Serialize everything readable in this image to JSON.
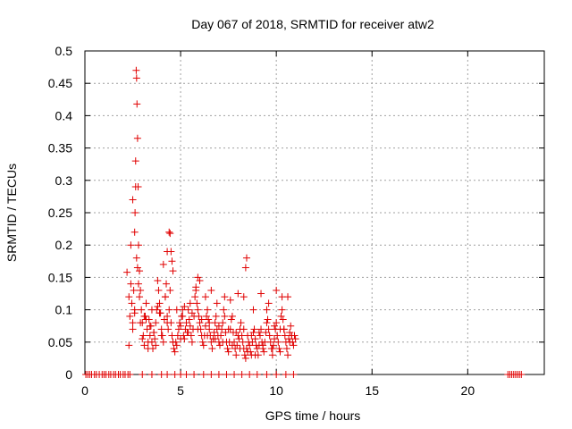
{
  "chart_data": {
    "type": "scatter",
    "title": "Day 067 of 2018, SRMTID for receiver atw2",
    "xlabel": "GPS time / hours",
    "ylabel": "SRMTID / TECUs",
    "xlim": [
      0,
      24
    ],
    "ylim": [
      0,
      0.5
    ],
    "grid": true,
    "marker": "+",
    "color": "#e00000",
    "x_ticks": [
      0,
      5,
      10,
      15,
      20
    ],
    "x_tick_labels": [
      "0",
      "5",
      "10",
      "15",
      "20"
    ],
    "y_ticks": [
      0,
      0.05,
      0.1,
      0.15,
      0.2,
      0.25,
      0.3,
      0.35,
      0.4,
      0.45,
      0.5
    ],
    "y_tick_labels": [
      "0",
      "0.05",
      "0.1",
      "0.15",
      "0.2",
      "0.25",
      "0.3",
      "0.35",
      "0.4",
      "0.45",
      "0.5"
    ],
    "series": [
      {
        "x": [
          0.05,
          0.15,
          0.25,
          0.35,
          0.5,
          0.6,
          0.75,
          0.9,
          1.0,
          1.1,
          1.25,
          1.35,
          1.5,
          1.6,
          1.75,
          1.85,
          2.0,
          2.1,
          2.25,
          2.35,
          3.0,
          3.5,
          4.0,
          4.3,
          4.7,
          5.0,
          5.3,
          5.7,
          6.2,
          6.6,
          7.0,
          7.4,
          7.8,
          8.2,
          8.6,
          9.0,
          9.5,
          10.0,
          10.5,
          10.9,
          22.1,
          22.2,
          22.3,
          22.4,
          22.5,
          22.6,
          22.7,
          22.8,
          2.2,
          2.3,
          2.35,
          2.4,
          2.45,
          2.5,
          2.55,
          2.6,
          2.62,
          2.65,
          2.68,
          2.7,
          2.72,
          2.75,
          2.78,
          2.8,
          2.85,
          2.9,
          2.95,
          3.0,
          3.05,
          3.1,
          3.15,
          3.2,
          3.25,
          3.3,
          3.35,
          3.4,
          3.45,
          3.5,
          3.55,
          3.6,
          3.65,
          3.7,
          3.75,
          3.8,
          3.85,
          3.9,
          3.95,
          4.0,
          4.05,
          4.1,
          4.15,
          4.2,
          4.25,
          4.3,
          4.35,
          4.4,
          4.45,
          4.5,
          4.55,
          4.6,
          4.65,
          4.7,
          4.75,
          4.8,
          4.85,
          4.9,
          4.95,
          5.0,
          5.05,
          5.1,
          5.15,
          5.2,
          5.25,
          5.3,
          5.35,
          5.4,
          5.45,
          5.5,
          5.55,
          5.6,
          5.65,
          5.7,
          5.75,
          5.8,
          5.85,
          5.9,
          5.95,
          6.0,
          6.05,
          6.1,
          6.15,
          6.2,
          6.25,
          6.3,
          6.35,
          6.4,
          6.45,
          6.5,
          6.55,
          6.6,
          6.65,
          6.7,
          6.75,
          6.8,
          6.85,
          6.9,
          6.95,
          7.0,
          7.05,
          7.1,
          7.15,
          7.2,
          7.25,
          7.3,
          7.35,
          7.4,
          7.45,
          7.5,
          7.55,
          7.6,
          7.65,
          7.7,
          7.75,
          7.8,
          7.85,
          7.9,
          7.95,
          8.0,
          8.05,
          8.1,
          8.15,
          8.2,
          8.25,
          8.3,
          8.35,
          8.4,
          8.45,
          8.5,
          8.55,
          8.6,
          8.65,
          8.7,
          8.75,
          8.8,
          8.85,
          8.9,
          8.95,
          9.0,
          9.05,
          9.1,
          9.15,
          9.2,
          9.25,
          9.3,
          9.35,
          9.4,
          9.45,
          9.5,
          9.55,
          9.6,
          9.65,
          9.7,
          9.75,
          9.8,
          9.85,
          9.9,
          9.95,
          10.0,
          10.05,
          10.1,
          10.15,
          10.2,
          10.25,
          10.3,
          10.35,
          10.4,
          10.45,
          10.5,
          10.55,
          10.6,
          10.65,
          10.7,
          10.75,
          10.8,
          10.85,
          10.9,
          10.95,
          11.0,
          2.4,
          2.5,
          2.6,
          2.65,
          2.7,
          2.75,
          2.8,
          2.85,
          3.2,
          3.4,
          3.6,
          3.8,
          4.1,
          4.2,
          4.3,
          4.4,
          4.45,
          4.5,
          4.55,
          4.6,
          5.2,
          5.5,
          5.8,
          5.9,
          6.0,
          6.3,
          6.6,
          6.9,
          7.3,
          7.6,
          8.0,
          8.3,
          8.4,
          8.45,
          8.8,
          9.2,
          9.6,
          10.0,
          10.3,
          10.6,
          2.3,
          2.6,
          3.0,
          3.3,
          3.7,
          4.0,
          4.6,
          5.0,
          5.4,
          5.9,
          6.4,
          6.8,
          7.2,
          7.7,
          8.1,
          8.5,
          8.9,
          9.3,
          9.8,
          10.2,
          10.7,
          2.5,
          2.9,
          3.1,
          3.5,
          3.9,
          4.3,
          4.8,
          5.1,
          5.6,
          6.1,
          6.5,
          7.0,
          7.5,
          7.9,
          8.3,
          8.7,
          9.1,
          9.5,
          9.9,
          10.4,
          10.8
        ],
        "y": [
          0,
          0,
          0,
          0,
          0,
          0,
          0,
          0,
          0,
          0,
          0,
          0,
          0,
          0,
          0,
          0,
          0,
          0,
          0,
          0,
          0,
          0,
          0,
          0,
          0,
          0,
          0,
          0,
          0,
          0,
          0,
          0,
          0,
          0,
          0,
          0,
          0,
          0,
          0,
          0,
          0,
          0,
          0,
          0,
          0,
          0,
          0,
          0,
          0.158,
          0.12,
          0.09,
          0.14,
          0.11,
          0.08,
          0.13,
          0.1,
          0.25,
          0.33,
          0.47,
          0.458,
          0.418,
          0.365,
          0.29,
          0.2,
          0.16,
          0.13,
          0.1,
          0.08,
          0.06,
          0.045,
          0.09,
          0.11,
          0.07,
          0.05,
          0.085,
          0.06,
          0.075,
          0.05,
          0.04,
          0.065,
          0.055,
          0.08,
          0.1,
          0.145,
          0.13,
          0.11,
          0.095,
          0.07,
          0.06,
          0.05,
          0.085,
          0.12,
          0.14,
          0.09,
          0.07,
          0.1,
          0.13,
          0.08,
          0.06,
          0.05,
          0.04,
          0.035,
          0.05,
          0.045,
          0.06,
          0.07,
          0.08,
          0.075,
          0.09,
          0.1,
          0.06,
          0.055,
          0.07,
          0.08,
          0.065,
          0.1,
          0.085,
          0.075,
          0.06,
          0.05,
          0.07,
          0.09,
          0.12,
          0.13,
          0.11,
          0.1,
          0.09,
          0.08,
          0.07,
          0.06,
          0.05,
          0.045,
          0.06,
          0.075,
          0.09,
          0.1,
          0.085,
          0.07,
          0.06,
          0.05,
          0.04,
          0.055,
          0.065,
          0.08,
          0.09,
          0.07,
          0.06,
          0.05,
          0.045,
          0.06,
          0.07,
          0.08,
          0.1,
          0.09,
          0.065,
          0.05,
          0.04,
          0.035,
          0.05,
          0.07,
          0.085,
          0.09,
          0.065,
          0.05,
          0.04,
          0.03,
          0.045,
          0.06,
          0.055,
          0.07,
          0.08,
          0.06,
          0.05,
          0.04,
          0.03,
          0.025,
          0.04,
          0.06,
          0.05,
          0.045,
          0.035,
          0.03,
          0.05,
          0.065,
          0.07,
          0.055,
          0.045,
          0.04,
          0.03,
          0.045,
          0.06,
          0.07,
          0.05,
          0.04,
          0.035,
          0.05,
          0.065,
          0.1,
          0.085,
          0.07,
          0.06,
          0.05,
          0.04,
          0.03,
          0.045,
          0.055,
          0.07,
          0.08,
          0.06,
          0.05,
          0.04,
          0.07,
          0.09,
          0.1,
          0.085,
          0.07,
          0.06,
          0.05,
          0.04,
          0.03,
          0.055,
          0.065,
          0.075,
          0.06,
          0.05,
          0.045,
          0.06,
          0.055,
          0.2,
          0.27,
          0.22,
          0.29,
          0.18,
          0.165,
          0.14,
          0.12,
          0.085,
          0.075,
          0.065,
          0.105,
          0.17,
          0.12,
          0.19,
          0.22,
          0.218,
          0.19,
          0.175,
          0.16,
          0.105,
          0.11,
          0.135,
          0.15,
          0.145,
          0.12,
          0.13,
          0.11,
          0.12,
          0.115,
          0.125,
          0.12,
          0.165,
          0.18,
          0.1,
          0.125,
          0.11,
          0.13,
          0.12,
          0.12,
          0.045,
          0.095,
          0.055,
          0.04,
          0.045,
          0.06,
          0.05,
          0.055,
          0.065,
          0.07,
          0.06,
          0.055,
          0.05,
          0.045,
          0.04,
          0.035,
          0.03,
          0.045,
          0.04,
          0.035,
          0.05,
          0.07,
          0.08,
          0.09,
          0.1,
          0.095,
          0.08,
          0.1,
          0.09,
          0.095,
          0.085,
          0.08,
          0.075,
          0.07,
          0.065,
          0.07,
          0.06,
          0.065,
          0.08,
          0.075,
          0.07,
          0.06
        ]
      }
    ]
  }
}
